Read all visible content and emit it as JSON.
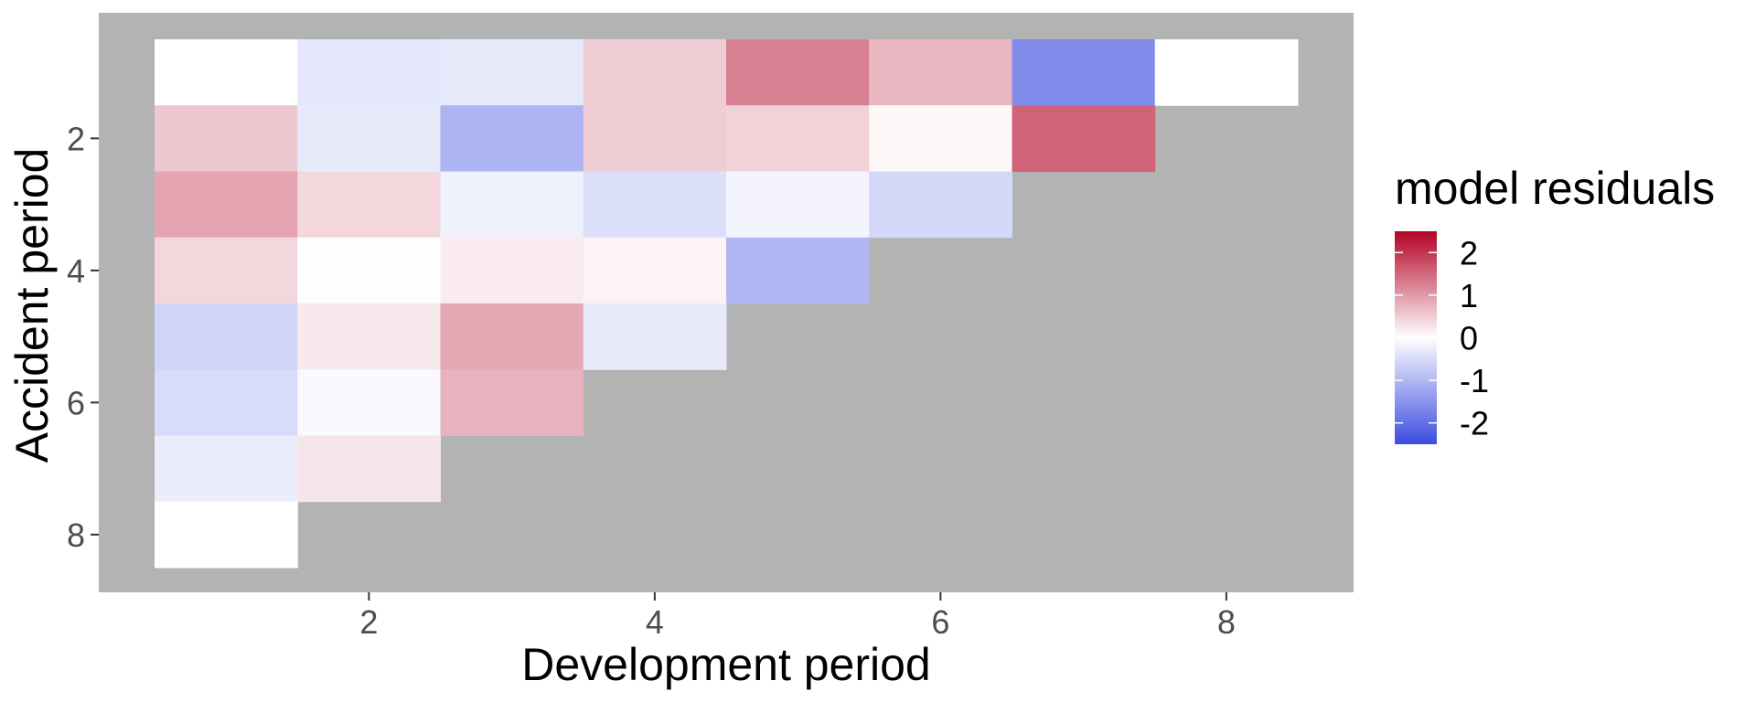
{
  "chart_data": {
    "type": "heatmap",
    "xlabel": "Development period",
    "ylabel": "Accident period",
    "x_ticks": [
      2,
      4,
      6,
      8
    ],
    "y_ticks": [
      2,
      4,
      6,
      8
    ],
    "xlim": [
      0.5,
      8.5
    ],
    "ylim": [
      0.5,
      8.5
    ],
    "y_reversed": true,
    "grid": false,
    "panel_background": "#B3B3B3",
    "legend": {
      "title": "model residuals",
      "position": "right",
      "breaks": [
        2,
        1,
        0,
        -1,
        -2
      ],
      "labels": [
        "2",
        "1",
        "0",
        "-1",
        "-2"
      ],
      "limits": [
        -2.5,
        2.5
      ],
      "colors": {
        "low": "#3B4CE0",
        "mid": "#FFFFFF",
        "high": "#B30326"
      }
    },
    "cells": [
      {
        "row": 1,
        "col": 1,
        "value": 0.0
      },
      {
        "row": 1,
        "col": 2,
        "value": -0.35
      },
      {
        "row": 1,
        "col": 3,
        "value": -0.3
      },
      {
        "row": 1,
        "col": 4,
        "value": 0.5
      },
      {
        "row": 1,
        "col": 5,
        "value": 1.25
      },
      {
        "row": 1,
        "col": 6,
        "value": 0.7
      },
      {
        "row": 1,
        "col": 7,
        "value": -1.6
      },
      {
        "row": 1,
        "col": 8,
        "value": 0.0
      },
      {
        "row": 2,
        "col": 1,
        "value": 0.55
      },
      {
        "row": 2,
        "col": 2,
        "value": -0.3
      },
      {
        "row": 2,
        "col": 3,
        "value": -1.05
      },
      {
        "row": 2,
        "col": 4,
        "value": 0.5
      },
      {
        "row": 2,
        "col": 5,
        "value": 0.45
      },
      {
        "row": 2,
        "col": 6,
        "value": 0.08
      },
      {
        "row": 2,
        "col": 7,
        "value": 1.55
      },
      {
        "row": 3,
        "col": 1,
        "value": 0.9
      },
      {
        "row": 3,
        "col": 2,
        "value": 0.4
      },
      {
        "row": 3,
        "col": 3,
        "value": -0.2
      },
      {
        "row": 3,
        "col": 4,
        "value": -0.45
      },
      {
        "row": 3,
        "col": 5,
        "value": -0.15
      },
      {
        "row": 3,
        "col": 6,
        "value": -0.55
      },
      {
        "row": 4,
        "col": 1,
        "value": 0.4
      },
      {
        "row": 4,
        "col": 2,
        "value": 0.02
      },
      {
        "row": 4,
        "col": 3,
        "value": 0.2
      },
      {
        "row": 4,
        "col": 4,
        "value": 0.12
      },
      {
        "row": 4,
        "col": 5,
        "value": -1.0
      },
      {
        "row": 5,
        "col": 1,
        "value": -0.6
      },
      {
        "row": 5,
        "col": 2,
        "value": 0.22
      },
      {
        "row": 5,
        "col": 3,
        "value": 0.85
      },
      {
        "row": 5,
        "col": 4,
        "value": -0.3
      },
      {
        "row": 6,
        "col": 1,
        "value": -0.5
      },
      {
        "row": 6,
        "col": 2,
        "value": -0.08
      },
      {
        "row": 6,
        "col": 3,
        "value": 0.75
      },
      {
        "row": 7,
        "col": 1,
        "value": -0.25
      },
      {
        "row": 7,
        "col": 2,
        "value": 0.25
      },
      {
        "row": 8,
        "col": 1,
        "value": 0.0
      }
    ]
  }
}
